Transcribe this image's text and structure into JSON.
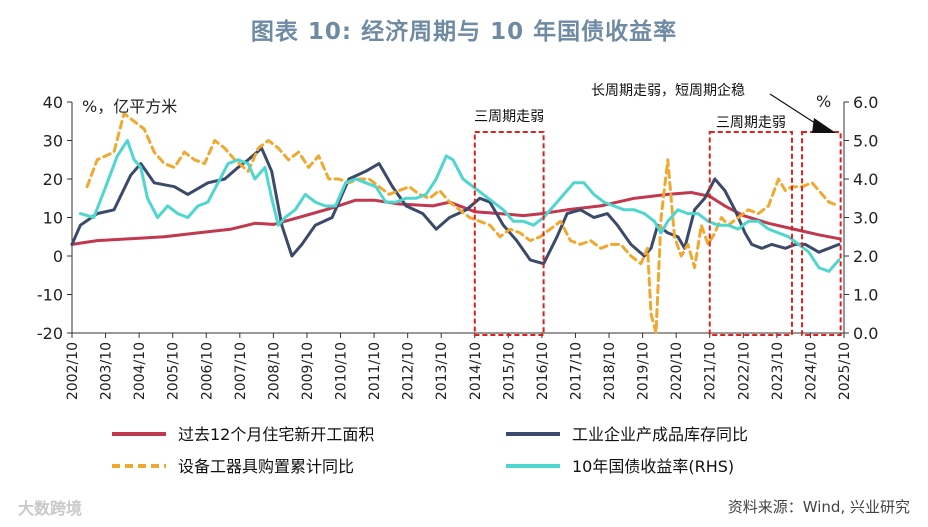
{
  "title": "图表 10: 经济周期与 10 年国债收益率",
  "source": "资料来源：Wind, 兴业研究",
  "watermark": "大数跨境",
  "colors": {
    "red": "#c0394f",
    "navy": "#3b4a6b",
    "orange": "#f0a830",
    "cyan": "#4fd6cf",
    "box": "#e0201b",
    "title": "#6f8aa3"
  },
  "chart_data": {
    "type": "line",
    "left_unit": "%，亿平方米",
    "right_unit": "%",
    "left_axis": {
      "min": -20,
      "max": 40,
      "ticks": [
        40,
        30,
        20,
        10,
        0,
        -10,
        -20
      ]
    },
    "right_axis": {
      "min": 0.0,
      "max": 6.0,
      "ticks": [
        "6.0",
        "5.0",
        "4.0",
        "3.0",
        "2.0",
        "1.0",
        "0.0"
      ]
    },
    "x_range": [
      2002.75,
      2025.75
    ],
    "x_ticks": [
      "2002/10",
      "2003/10",
      "2004/10",
      "2005/10",
      "2006/10",
      "2007/10",
      "2008/10",
      "2009/10",
      "2010/10",
      "2011/10",
      "2012/10",
      "2013/10",
      "2014/10",
      "2015/10",
      "2016/10",
      "2017/10",
      "2018/10",
      "2019/10",
      "2020/10",
      "2021/10",
      "2022/10",
      "2023/10",
      "2024/10",
      "2025/10"
    ],
    "annotations": [
      {
        "text": "三周期走弱",
        "box": [
          2014.75,
          2016.8
        ]
      },
      {
        "text": "三周期走弱",
        "box": [
          2021.75,
          2024.2
        ]
      },
      {
        "text": "长周期走弱，短周期企稳",
        "box": [
          2024.5,
          2025.65
        ]
      }
    ],
    "series": [
      {
        "name": "过去12个月住宅新开工面积",
        "axis": "left",
        "style": "solid",
        "color_key": "red",
        "x": [
          2002.75,
          2003.5,
          2004.5,
          2005.5,
          2006.5,
          2007.5,
          2008.2,
          2008.75,
          2009.5,
          2010.5,
          2011.2,
          2011.75,
          2012.5,
          2013.5,
          2014.0,
          2014.75,
          2015.5,
          2016.2,
          2016.75,
          2017.5,
          2018.5,
          2019.5,
          2020.5,
          2021.2,
          2021.75,
          2022.2,
          2022.75,
          2023.5,
          2024.5,
          2025.0,
          2025.6
        ],
        "values": [
          3,
          4,
          4.5,
          5,
          6,
          7,
          8.5,
          8.2,
          10,
          12.5,
          14.5,
          14.5,
          13.5,
          13,
          14,
          11.5,
          11,
          10.5,
          11,
          12,
          13,
          15,
          16,
          16.5,
          15.5,
          13,
          10.5,
          8.5,
          6.5,
          5.5,
          4.5
        ]
      },
      {
        "name": "工业企业产成品库存同比",
        "axis": "left",
        "style": "solid",
        "color_key": "navy",
        "x": [
          2002.75,
          2003.0,
          2003.5,
          2004.0,
          2004.5,
          2004.8,
          2005.2,
          2005.8,
          2006.2,
          2006.8,
          2007.3,
          2007.7,
          2008.0,
          2008.4,
          2008.7,
          2009.0,
          2009.3,
          2009.6,
          2010.0,
          2010.5,
          2011.0,
          2011.5,
          2011.9,
          2012.3,
          2012.7,
          2013.2,
          2013.6,
          2014.0,
          2014.5,
          2014.9,
          2015.2,
          2015.6,
          2016.0,
          2016.4,
          2016.8,
          2017.2,
          2017.5,
          2017.9,
          2018.3,
          2018.7,
          2019.0,
          2019.4,
          2019.8,
          2020.0,
          2020.2,
          2020.5,
          2020.8,
          2021.0,
          2021.3,
          2021.6,
          2021.9,
          2022.2,
          2022.5,
          2022.8,
          2023.0,
          2023.3,
          2023.6,
          2024.0,
          2024.3,
          2024.6,
          2025.0,
          2025.3,
          2025.6
        ],
        "values": [
          3,
          8,
          11,
          12,
          21,
          24,
          19,
          18,
          16,
          19,
          20,
          23,
          25,
          28,
          22,
          8,
          0,
          3,
          8,
          10,
          20,
          22,
          24,
          18,
          13,
          11,
          7,
          10,
          12,
          15,
          14,
          8,
          4,
          -1,
          -2,
          5,
          11,
          12,
          10,
          11,
          8,
          3,
          0,
          2,
          8,
          6,
          5,
          2,
          12,
          15,
          20,
          17,
          12,
          6,
          3,
          2,
          3,
          2,
          3,
          3,
          1,
          2,
          3
        ]
      },
      {
        "name": "设备工器具购置累计同比",
        "axis": "left",
        "style": "dashed",
        "color_key": "orange",
        "x": [
          2003.2,
          2003.5,
          2004.0,
          2004.3,
          2004.6,
          2004.9,
          2005.2,
          2005.5,
          2005.8,
          2006.1,
          2006.4,
          2006.7,
          2007.0,
          2007.3,
          2007.6,
          2008.0,
          2008.3,
          2008.6,
          2008.9,
          2009.2,
          2009.5,
          2009.8,
          2010.1,
          2010.4,
          2010.7,
          2011.0,
          2011.3,
          2011.6,
          2011.9,
          2012.2,
          2012.5,
          2012.8,
          2013.1,
          2013.4,
          2013.7,
          2014.0,
          2014.3,
          2014.6,
          2014.9,
          2015.2,
          2015.5,
          2015.8,
          2016.1,
          2016.4,
          2016.7,
          2017.0,
          2017.3,
          2017.6,
          2017.9,
          2018.2,
          2018.5,
          2018.8,
          2019.1,
          2019.4,
          2019.7,
          2019.9,
          2020.0,
          2020.15,
          2020.3,
          2020.5,
          2020.7,
          2020.9,
          2021.1,
          2021.3,
          2021.5,
          2021.7,
          2021.9,
          2022.1,
          2022.3,
          2022.6,
          2022.9,
          2023.2,
          2023.5,
          2023.8,
          2024.0,
          2024.2,
          2024.5,
          2024.8,
          2025.0,
          2025.3,
          2025.6
        ],
        "values": [
          18,
          25,
          27,
          37,
          35,
          33,
          27,
          24,
          23,
          27,
          25,
          24,
          30,
          28,
          25,
          22,
          28,
          30,
          28,
          25,
          27,
          23,
          26,
          20,
          20,
          19,
          20,
          20,
          18,
          16,
          17,
          18,
          16,
          15,
          17,
          14,
          12,
          10,
          9,
          8,
          5,
          7,
          6,
          4,
          5,
          7,
          9,
          4,
          3,
          4,
          2,
          3,
          3,
          0,
          -2,
          2,
          -15,
          -20,
          10,
          25,
          5,
          0,
          3,
          -3,
          8,
          3,
          6,
          10,
          8,
          10,
          12,
          11,
          13,
          20,
          17,
          18,
          18,
          19,
          17,
          14,
          13
        ]
      },
      {
        "name": "10年国债收益率(RHS)",
        "axis": "right",
        "style": "solid",
        "color_key": "cyan",
        "x": [
          2003.0,
          2003.4,
          2003.8,
          2004.1,
          2004.4,
          2004.6,
          2004.8,
          2005.0,
          2005.3,
          2005.6,
          2005.9,
          2006.2,
          2006.5,
          2006.8,
          2007.1,
          2007.4,
          2007.7,
          2008.0,
          2008.2,
          2008.5,
          2008.7,
          2008.9,
          2009.1,
          2009.4,
          2009.7,
          2010.0,
          2010.3,
          2010.6,
          2010.9,
          2011.2,
          2011.5,
          2011.8,
          2012.1,
          2012.4,
          2012.7,
          2013.0,
          2013.3,
          2013.6,
          2013.9,
          2014.1,
          2014.4,
          2014.7,
          2015.0,
          2015.3,
          2015.6,
          2015.9,
          2016.2,
          2016.5,
          2016.8,
          2017.1,
          2017.4,
          2017.7,
          2018.0,
          2018.3,
          2018.6,
          2018.9,
          2019.2,
          2019.5,
          2019.8,
          2020.1,
          2020.3,
          2020.5,
          2020.8,
          2021.1,
          2021.4,
          2021.7,
          2022.0,
          2022.3,
          2022.6,
          2022.9,
          2023.2,
          2023.5,
          2023.8,
          2024.1,
          2024.4,
          2024.7,
          2025.0,
          2025.3,
          2025.6
        ],
        "values": [
          3.1,
          3.0,
          3.9,
          4.6,
          5.0,
          4.5,
          4.3,
          3.5,
          3.0,
          3.3,
          3.1,
          3.0,
          3.3,
          3.4,
          3.9,
          4.4,
          4.5,
          4.4,
          4.0,
          4.3,
          3.5,
          2.8,
          3.0,
          3.2,
          3.6,
          3.4,
          3.3,
          3.3,
          3.9,
          4.0,
          3.9,
          3.8,
          3.4,
          3.4,
          3.5,
          3.5,
          3.6,
          4.0,
          4.6,
          4.5,
          4.0,
          3.8,
          3.6,
          3.4,
          3.2,
          2.9,
          2.9,
          2.8,
          3.0,
          3.3,
          3.6,
          3.9,
          3.9,
          3.6,
          3.4,
          3.3,
          3.2,
          3.2,
          3.1,
          2.9,
          2.6,
          2.9,
          3.2,
          3.1,
          3.1,
          2.9,
          2.8,
          2.8,
          2.7,
          2.9,
          2.9,
          2.7,
          2.6,
          2.5,
          2.3,
          2.1,
          1.7,
          1.6,
          1.9
        ]
      }
    ]
  }
}
